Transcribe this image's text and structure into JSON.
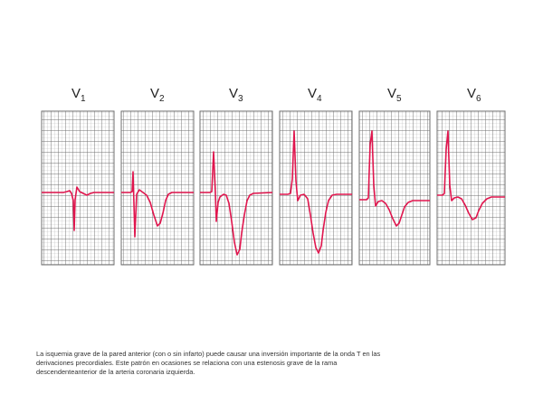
{
  "leads": [
    {
      "letter": "V",
      "sub": "1"
    },
    {
      "letter": "V",
      "sub": "2"
    },
    {
      "letter": "V",
      "sub": "3"
    },
    {
      "letter": "V",
      "sub": "4"
    },
    {
      "letter": "V",
      "sub": "5"
    },
    {
      "letter": "V",
      "sub": "6"
    }
  ],
  "colors": {
    "trace": "#e0164e",
    "grid_minor": "#b9b9b9",
    "grid_major": "#6f6f6f",
    "label": "#222222",
    "caption": "#333333"
  },
  "caption": {
    "line1": "La isquemia grave de la pared anterior (con o sin infarto) puede causar una inversión importante de la onda T en las",
    "line2": "derivaciones precordiales. Este patrón en ocasiones se relaciona con una estenosis grave de la rama",
    "line3": "descendenteanterior de la arteria coronaria izquierda."
  }
}
